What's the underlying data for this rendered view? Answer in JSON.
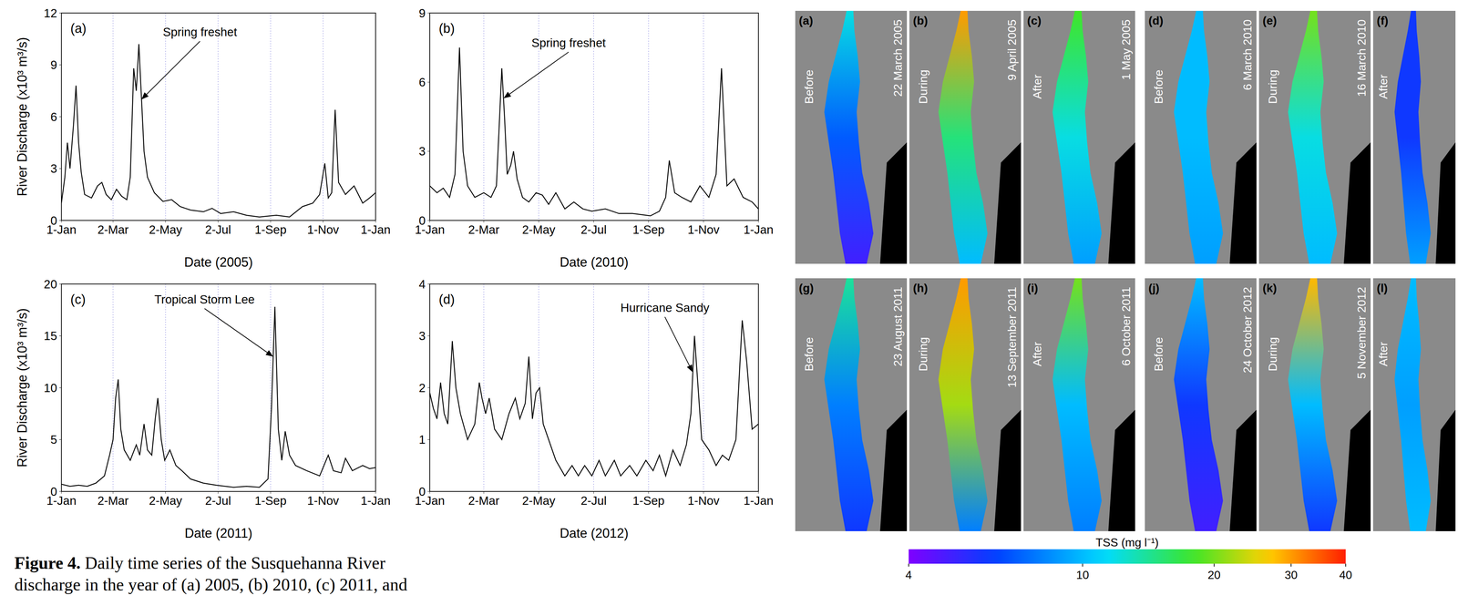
{
  "chart_data": [
    {
      "type": "line",
      "label": "(a)",
      "x_label": "Date (2005)",
      "y_label": "River Discharge (x10³ m³/s)",
      "color": "#000000",
      "grid": "x",
      "x": [
        0,
        4,
        7,
        10,
        14,
        17,
        20,
        23,
        27,
        35,
        42,
        47,
        52,
        58,
        64,
        70,
        76,
        80,
        84,
        87,
        90,
        93,
        96,
        100,
        108,
        118,
        128,
        138,
        150,
        165,
        175,
        185,
        200,
        215,
        230,
        250,
        265,
        280,
        292,
        300,
        306,
        310,
        314,
        318,
        322,
        330,
        340,
        350,
        358,
        365
      ],
      "values": [
        1.0,
        2.5,
        4.5,
        3.0,
        5.5,
        7.8,
        4.5,
        2.8,
        1.5,
        1.3,
        2.0,
        2.2,
        1.5,
        1.2,
        1.8,
        1.4,
        1.2,
        2.5,
        8.8,
        7.5,
        10.2,
        7.1,
        4.0,
        2.5,
        1.6,
        1.1,
        1.2,
        0.8,
        0.6,
        0.5,
        0.7,
        0.4,
        0.5,
        0.3,
        0.2,
        0.3,
        0.2,
        0.8,
        1.0,
        1.5,
        3.3,
        1.3,
        1.6,
        6.4,
        2.2,
        1.5,
        2.0,
        1.0,
        1.3,
        1.6
      ],
      "xlim": [
        0,
        365
      ],
      "xticks": [
        {
          "value": 0,
          "label": "1-Jan"
        },
        {
          "value": 60,
          "label": "2-Mar"
        },
        {
          "value": 121,
          "label": "2-May"
        },
        {
          "value": 182,
          "label": "2-Jul"
        },
        {
          "value": 243,
          "label": "1-Sep"
        },
        {
          "value": 304,
          "label": "1-Nov"
        },
        {
          "value": 365,
          "label": "1-Jan"
        }
      ],
      "ylim": [
        0,
        12
      ],
      "yticks": [
        0,
        3,
        6,
        9,
        12
      ],
      "annotations": [
        {
          "text": "Spring freshet",
          "x": 93,
          "y": 7
        }
      ]
    },
    {
      "type": "line",
      "label": "(b)",
      "x_label": "Date (2010)",
      "color": "#000000",
      "grid": "x",
      "x": [
        0,
        8,
        15,
        22,
        28,
        33,
        37,
        42,
        50,
        60,
        68,
        74,
        77,
        80,
        83,
        86,
        90,
        93,
        97,
        103,
        110,
        118,
        125,
        132,
        140,
        150,
        160,
        170,
        180,
        195,
        210,
        225,
        245,
        255,
        262,
        266,
        272,
        280,
        290,
        300,
        310,
        318,
        324,
        330,
        338,
        348,
        358,
        365
      ],
      "values": [
        1.5,
        1.2,
        1.4,
        1.0,
        2.0,
        7.5,
        3.0,
        1.5,
        1.0,
        1.2,
        1.0,
        1.5,
        4.0,
        6.6,
        4.5,
        2.0,
        2.4,
        3.0,
        1.8,
        1.0,
        0.8,
        1.2,
        1.1,
        0.7,
        1.2,
        0.5,
        0.8,
        0.5,
        0.4,
        0.5,
        0.3,
        0.3,
        0.2,
        0.4,
        1.0,
        2.6,
        1.2,
        1.0,
        0.8,
        1.5,
        1.0,
        2.0,
        6.6,
        1.5,
        1.8,
        1.0,
        0.8,
        0.5
      ],
      "xlim": [
        0,
        365
      ],
      "xticks": [
        {
          "value": 0,
          "label": "1-Jan"
        },
        {
          "value": 60,
          "label": "2-Mar"
        },
        {
          "value": 121,
          "label": "2-May"
        },
        {
          "value": 182,
          "label": "2-Jul"
        },
        {
          "value": 243,
          "label": "1-Sep"
        },
        {
          "value": 304,
          "label": "1-Nov"
        },
        {
          "value": 365,
          "label": "1-Jan"
        }
      ],
      "ylim": [
        0,
        9
      ],
      "yticks": [
        0,
        3,
        6,
        9
      ],
      "annotations": [
        {
          "text": "Spring freshet",
          "x": 82,
          "y": 5.3
        }
      ]
    },
    {
      "type": "line",
      "label": "(c)",
      "x_label": "Date (2011)",
      "y_label": "River Discharge (x10³ m³/s)",
      "color": "#000000",
      "grid": "x",
      "x": [
        0,
        10,
        20,
        30,
        40,
        50,
        56,
        60,
        63,
        66,
        69,
        73,
        80,
        87,
        91,
        96,
        100,
        105,
        109,
        112,
        116,
        120,
        126,
        133,
        140,
        150,
        165,
        180,
        200,
        215,
        230,
        240,
        244,
        248,
        252,
        256,
        260,
        265,
        272,
        285,
        300,
        310,
        316,
        325,
        330,
        338,
        350,
        358,
        365
      ],
      "values": [
        0.7,
        0.5,
        0.6,
        0.5,
        0.8,
        1.5,
        3.5,
        5.0,
        9.0,
        10.8,
        6.0,
        4.0,
        3.0,
        4.5,
        3.5,
        6.5,
        4.0,
        3.5,
        7.0,
        9.0,
        5.0,
        3.0,
        4.0,
        2.5,
        2.0,
        1.2,
        0.8,
        0.6,
        0.4,
        0.5,
        0.4,
        1.2,
        8.0,
        17.8,
        6.0,
        3.0,
        5.8,
        3.5,
        2.5,
        2.0,
        1.5,
        3.5,
        2.0,
        1.8,
        3.2,
        2.0,
        2.5,
        2.2,
        2.3
      ],
      "xlim": [
        0,
        365
      ],
      "xticks": [
        {
          "value": 0,
          "label": "1-Jan"
        },
        {
          "value": 60,
          "label": "2-Mar"
        },
        {
          "value": 121,
          "label": "2-May"
        },
        {
          "value": 182,
          "label": "2-Jul"
        },
        {
          "value": 243,
          "label": "1-Sep"
        },
        {
          "value": 304,
          "label": "1-Nov"
        },
        {
          "value": 365,
          "label": "1-Jan"
        }
      ],
      "ylim": [
        0,
        20
      ],
      "yticks": [
        0,
        5,
        10,
        15,
        20
      ],
      "annotations": [
        {
          "text": "Tropical Storm Lee",
          "x": 246,
          "y": 13
        }
      ]
    },
    {
      "type": "line",
      "label": "(d)",
      "x_label": "Date (2012)",
      "color": "#000000",
      "grid": "x",
      "x": [
        0,
        4,
        8,
        12,
        16,
        20,
        25,
        29,
        34,
        42,
        50,
        55,
        58,
        62,
        66,
        72,
        80,
        88,
        95,
        100,
        106,
        110,
        114,
        118,
        122,
        126,
        132,
        140,
        150,
        158,
        165,
        172,
        180,
        188,
        195,
        205,
        212,
        222,
        230,
        240,
        248,
        255,
        262,
        270,
        278,
        285,
        290,
        294,
        298,
        302,
        310,
        318,
        325,
        332,
        340,
        347,
        352,
        358,
        365
      ],
      "values": [
        1.9,
        1.6,
        1.4,
        2.1,
        1.5,
        1.3,
        2.9,
        2.0,
        1.5,
        1.0,
        1.3,
        2.1,
        1.8,
        1.5,
        1.8,
        1.2,
        1.0,
        1.5,
        1.8,
        1.4,
        1.7,
        2.6,
        1.4,
        1.9,
        2.0,
        1.3,
        1.0,
        0.6,
        0.3,
        0.5,
        0.3,
        0.5,
        0.3,
        0.6,
        0.3,
        0.6,
        0.3,
        0.5,
        0.3,
        0.6,
        0.4,
        0.7,
        0.3,
        0.8,
        0.5,
        0.9,
        1.5,
        3.0,
        2.0,
        1.0,
        0.8,
        0.5,
        0.7,
        0.6,
        1.0,
        3.3,
        2.5,
        1.2,
        1.3
      ],
      "xlim": [
        0,
        365
      ],
      "xticks": [
        {
          "value": 0,
          "label": "1-Jan"
        },
        {
          "value": 60,
          "label": "2-Mar"
        },
        {
          "value": 121,
          "label": "2-May"
        },
        {
          "value": 182,
          "label": "2-Jul"
        },
        {
          "value": 243,
          "label": "1-Sep"
        },
        {
          "value": 304,
          "label": "1-Nov"
        },
        {
          "value": 365,
          "label": "1-Jan"
        }
      ],
      "ylim": [
        0,
        4
      ],
      "yticks": [
        0,
        1,
        2,
        3,
        4
      ],
      "annotations": [
        {
          "text": "Hurricane Sandy",
          "x": 292,
          "y": 2.3
        }
      ]
    }
  ],
  "caption": {
    "label": "Figure 4.",
    "lines": [
      "Daily time series of the Susquehanna River",
      "discharge in the year of (a) 2005, (b) 2010, (c) 2011, and"
    ]
  },
  "maps": {
    "panels": [
      {
        "label": "(a)",
        "phase": "Before",
        "date": "22 March 2005",
        "tss": [
          12,
          7,
          5
        ]
      },
      {
        "label": "(b)",
        "phase": "During",
        "date": "9 April 2005",
        "tss": [
          30,
          15,
          10
        ]
      },
      {
        "label": "(c)",
        "phase": "After",
        "date": "1 May 2005",
        "tss": [
          18,
          12,
          9
        ]
      },
      {
        "label": "(d)",
        "phase": "Before",
        "date": "6 March 2010",
        "tss": [
          10,
          10,
          9
        ]
      },
      {
        "label": "(e)",
        "phase": "During",
        "date": "16 March 2010",
        "tss": [
          20,
          12,
          10
        ]
      },
      {
        "label": "(f)",
        "phase": "After",
        "tss": [
          6,
          6,
          9
        ]
      },
      {
        "label": "(g)",
        "phase": "Before",
        "date": "23 August 2011",
        "tss": [
          14,
          8,
          6
        ]
      },
      {
        "label": "(h)",
        "phase": "During",
        "date": "13 September 2011",
        "tss": [
          30,
          22,
          8
        ]
      },
      {
        "label": "(i)",
        "phase": "After",
        "date": "6 October 2011",
        "tss": [
          20,
          10,
          8
        ]
      },
      {
        "label": "(j)",
        "phase": "Before",
        "date": "24 October 2012",
        "tss": [
          10,
          6,
          5
        ]
      },
      {
        "label": "(k)",
        "phase": "During",
        "date": "5 November 2012",
        "tss": [
          28,
          10,
          6
        ]
      },
      {
        "label": "(l)",
        "phase": "After",
        "tss": [
          10,
          9,
          10
        ]
      }
    ]
  },
  "colorbar": {
    "label": "TSS (mg l⁻¹)",
    "range": [
      4,
      40
    ],
    "ticks": [
      4,
      10,
      20,
      30,
      40
    ],
    "log": true
  }
}
